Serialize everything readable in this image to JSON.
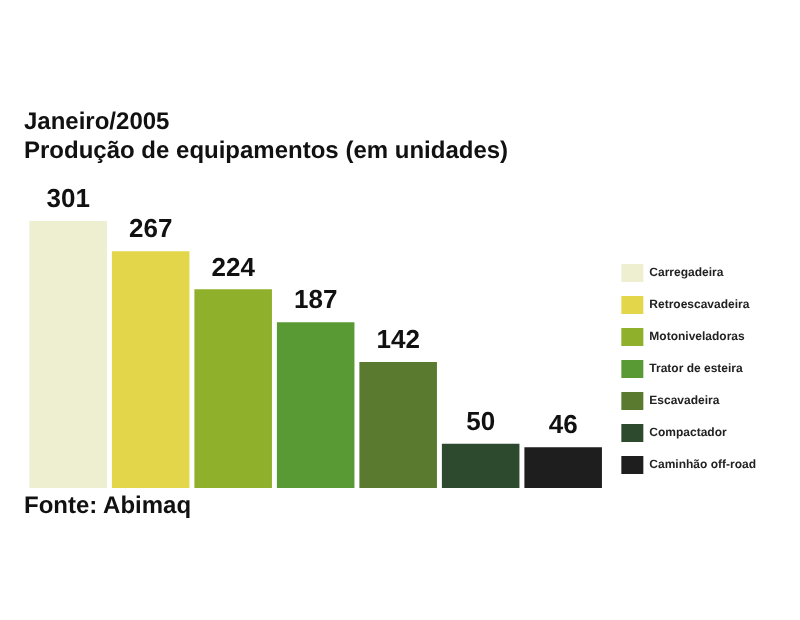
{
  "chart_data": {
    "type": "bar",
    "title": "Janeiro/2005",
    "subtitle": "Produção de equipamentos (em unidades)",
    "categories": [
      null
    ],
    "series": [
      {
        "name": "Carregadeira",
        "color": "#eeeed0",
        "values": [
          301
        ]
      },
      {
        "name": "Retroescavadeira",
        "color": "#e3d64a",
        "values": [
          267
        ]
      },
      {
        "name": "Motoniveladoras",
        "color": "#8fb02a",
        "values": [
          224
        ]
      },
      {
        "name": "Trator de esteira",
        "color": "#5a9a35",
        "values": [
          187
        ]
      },
      {
        "name": "Escavadeira",
        "color": "#5a7a30",
        "values": [
          142
        ]
      },
      {
        "name": "Compactador",
        "color": "#2e4a2e",
        "values": [
          50
        ]
      },
      {
        "name": "Caminhão off-road",
        "color": "#1e1e1e",
        "values": [
          46
        ]
      }
    ],
    "data_labels": true,
    "tick_labels": false,
    "legend": "right",
    "grid": false,
    "annotations": [
      "Fonte: Abimaq"
    ]
  }
}
